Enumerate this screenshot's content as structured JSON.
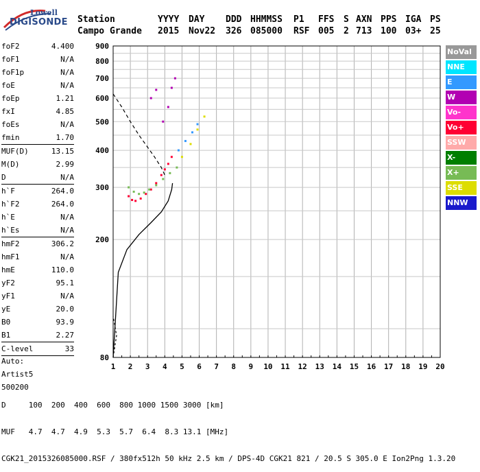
{
  "logo": {
    "line1": "Lowell",
    "line2": "DIGISONDE"
  },
  "header": {
    "labels": [
      "Station",
      "YYYY",
      "DAY",
      "DDD",
      "HHMMSS",
      "P1",
      "FFS",
      "S",
      "AXN",
      "PPS",
      "IGA",
      "PS"
    ],
    "values": [
      "Campo Grande",
      "2015",
      "Nov22",
      "326",
      "085000",
      "RSF",
      "005",
      "2",
      "713",
      "100",
      "03+",
      "25"
    ]
  },
  "params": {
    "group1": [
      {
        "name": "foF2",
        "value": "4.400"
      },
      {
        "name": "foF1",
        "value": "N/A"
      },
      {
        "name": "foF1p",
        "value": "N/A"
      },
      {
        "name": "foE",
        "value": "N/A"
      },
      {
        "name": "foEp",
        "value": "1.21"
      },
      {
        "name": "fxI",
        "value": "4.85"
      },
      {
        "name": "foEs",
        "value": "N/A"
      },
      {
        "name": "fmin",
        "value": "1.70"
      }
    ],
    "group2": [
      {
        "name": "MUF(D)",
        "value": "13.15"
      },
      {
        "name": "M(D)",
        "value": "2.99"
      },
      {
        "name": "D",
        "value": "N/A"
      }
    ],
    "group3": [
      {
        "name": "h`F",
        "value": "264.0"
      },
      {
        "name": "h`F2",
        "value": "264.0"
      },
      {
        "name": "h`E",
        "value": "N/A"
      },
      {
        "name": "h`Es",
        "value": "N/A"
      }
    ],
    "group4": [
      {
        "name": "hmF2",
        "value": "306.2"
      },
      {
        "name": "hmF1",
        "value": "N/A"
      },
      {
        "name": "hmE",
        "value": "110.0"
      },
      {
        "name": "yF2",
        "value": "95.1"
      },
      {
        "name": "yF1",
        "value": "N/A"
      },
      {
        "name": "yE",
        "value": "20.0"
      },
      {
        "name": "B0",
        "value": "93.9"
      },
      {
        "name": "B1",
        "value": "2.27"
      }
    ],
    "group5": [
      {
        "name": "C-level",
        "value": "33"
      }
    ],
    "auto": [
      "Auto:",
      "Artist5",
      "500200"
    ]
  },
  "legend": [
    {
      "label": "NoVal",
      "color": "#999999"
    },
    {
      "label": "NNE",
      "color": "#00e5ff"
    },
    {
      "label": "E",
      "color": "#3399ff"
    },
    {
      "label": "W",
      "color": "#b200b2"
    },
    {
      "label": "Vo-",
      "color": "#ff33cc"
    },
    {
      "label": "Vo+",
      "color": "#ff0033"
    },
    {
      "label": "SSW",
      "color": "#ffaaaa"
    },
    {
      "label": "X-",
      "color": "#007f00"
    },
    {
      "label": "X+",
      "color": "#77bb55"
    },
    {
      "label": "SSE",
      "color": "#dddd00"
    },
    {
      "label": "NNW",
      "color": "#1a1acc"
    }
  ],
  "footer": {
    "line1": "D     100  200  400  600  800 1000 1500 3000 [km]",
    "line2": "MUF   4.7  4.7  4.9  5.3  5.7  6.4  8.3 13.1 [MHz]",
    "line3": "CGK21_2015326085000.RSF / 380fx512h 50 kHz 2.5 km / DPS-4D CGK21 821 / 20.5 S 305.0 E Ion2Png 1.3.20"
  },
  "chart_data": {
    "type": "scatter",
    "title": "",
    "xlabel": "",
    "ylabel": "",
    "xlim": [
      1,
      20
    ],
    "ylim": [
      80,
      900
    ],
    "x_ticks": [
      1,
      2,
      3,
      4,
      5,
      6,
      7,
      8,
      9,
      10,
      11,
      12,
      13,
      14,
      15,
      16,
      17,
      18,
      19,
      20
    ],
    "y_ticks": [
      80,
      200,
      300,
      400,
      500,
      600,
      700,
      800,
      900
    ],
    "y_scale": "log",
    "grid": true,
    "legend": "right",
    "series": [
      {
        "name": "Vo+",
        "color": "#ff0033",
        "values": [
          [
            1.9,
            280
          ],
          [
            2.1,
            272
          ],
          [
            2.3,
            270
          ],
          [
            2.6,
            275
          ],
          [
            2.9,
            285
          ],
          [
            3.2,
            295
          ],
          [
            3.5,
            310
          ],
          [
            3.8,
            330
          ],
          [
            4.0,
            345
          ],
          [
            4.2,
            360
          ],
          [
            4.4,
            380
          ]
        ]
      },
      {
        "name": "X+",
        "color": "#77bb55",
        "values": [
          [
            1.9,
            300
          ],
          [
            2.2,
            290
          ],
          [
            2.5,
            285
          ],
          [
            2.8,
            288
          ],
          [
            3.1,
            295
          ],
          [
            3.5,
            305
          ],
          [
            3.9,
            320
          ],
          [
            4.3,
            335
          ],
          [
            4.7,
            350
          ]
        ]
      },
      {
        "name": "W",
        "color": "#b200b2",
        "values": [
          [
            3.9,
            500
          ],
          [
            4.2,
            560
          ],
          [
            4.4,
            650
          ],
          [
            4.6,
            700
          ],
          [
            3.2,
            600
          ],
          [
            3.5,
            640
          ]
        ]
      },
      {
        "name": "E",
        "color": "#3399ff",
        "values": [
          [
            4.8,
            400
          ],
          [
            5.2,
            430
          ],
          [
            5.6,
            460
          ],
          [
            5.9,
            490
          ]
        ]
      },
      {
        "name": "SSE",
        "color": "#dddd00",
        "values": [
          [
            5.0,
            380
          ],
          [
            5.5,
            420
          ],
          [
            5.9,
            470
          ],
          [
            6.3,
            520
          ]
        ]
      }
    ],
    "profile_solid": [
      [
        1.0,
        80
      ],
      [
        1.3,
        155
      ],
      [
        1.8,
        185
      ],
      [
        2.5,
        208
      ],
      [
        3.2,
        228
      ],
      [
        3.8,
        248
      ],
      [
        4.2,
        270
      ],
      [
        4.4,
        295
      ],
      [
        4.45,
        310
      ]
    ],
    "profile_dashed": [
      [
        1.0,
        620
      ],
      [
        1.5,
        560
      ],
      [
        2.0,
        500
      ],
      [
        2.5,
        450
      ],
      [
        3.0,
        410
      ],
      [
        3.4,
        380
      ],
      [
        3.8,
        350
      ],
      [
        4.0,
        330
      ]
    ],
    "profile_dashed_low": [
      [
        1.0,
        80
      ],
      [
        1.2,
        95
      ],
      [
        1.0,
        110
      ]
    ]
  }
}
